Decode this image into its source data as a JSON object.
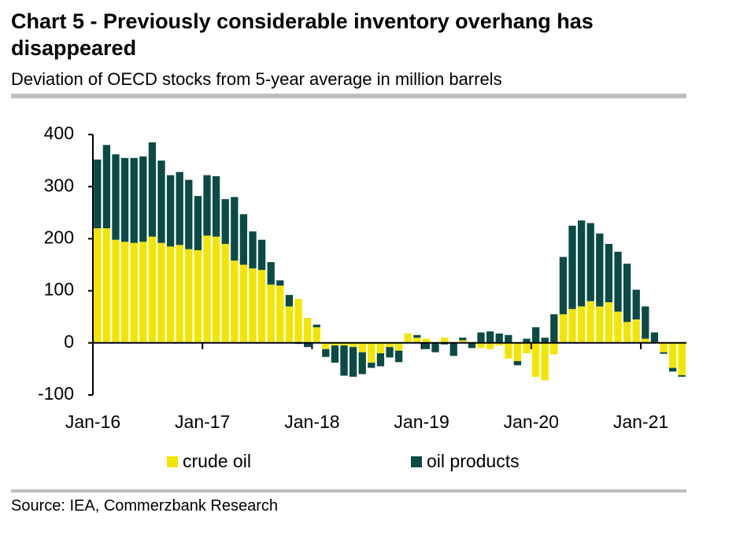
{
  "chart_data": {
    "type": "bar",
    "stacked": true,
    "title": "Chart 5 - Previously considerable inventory overhang has disappeared",
    "subtitle": "Deviation of OECD stocks from 5-year average in million barrels",
    "source": "Source: IEA, Commerzbank Research",
    "categories": [
      "Jan-16",
      null,
      null,
      null,
      null,
      null,
      null,
      null,
      null,
      null,
      null,
      null,
      "Jan-17",
      null,
      null,
      null,
      null,
      null,
      null,
      null,
      null,
      null,
      null,
      null,
      "Jan-18",
      null,
      null,
      null,
      null,
      null,
      null,
      null,
      null,
      null,
      null,
      null,
      "Jan-19",
      null,
      null,
      null,
      null,
      null,
      null,
      null,
      null,
      null,
      null,
      null,
      "Jan-20",
      null,
      null,
      null,
      null,
      null,
      null,
      null,
      null,
      null,
      null,
      null,
      "Jan-21",
      null,
      null,
      null,
      null
    ],
    "series": [
      {
        "name": "crude oil",
        "color": "#f2e600",
        "values": [
          220,
          220,
          198,
          194,
          192,
          194,
          204,
          192,
          185,
          188,
          180,
          178,
          206,
          204,
          190,
          158,
          150,
          143,
          140,
          112,
          110,
          70,
          84,
          48,
          30,
          -12,
          -5,
          -5,
          -8,
          -18,
          -38,
          -20,
          -8,
          -15,
          18,
          10,
          8,
          0,
          10,
          0,
          5,
          0,
          -10,
          -12,
          -5,
          -30,
          -35,
          -20,
          -65,
          -72,
          -22,
          55,
          65,
          70,
          80,
          70,
          78,
          60,
          40,
          45,
          8,
          0,
          -18,
          -48,
          -62
        ]
      },
      {
        "name": "oil products",
        "color": "#0b4a45",
        "values": [
          132,
          160,
          164,
          161,
          163,
          164,
          181,
          158,
          137,
          140,
          133,
          104,
          116,
          116,
          86,
          122,
          97,
          71,
          58,
          43,
          10,
          22,
          -2,
          -8,
          5,
          -15,
          -33,
          -58,
          -57,
          -42,
          -10,
          -25,
          -20,
          -22,
          0,
          5,
          -12,
          -18,
          -3,
          -25,
          5,
          -10,
          20,
          22,
          18,
          15,
          -8,
          8,
          30,
          10,
          55,
          110,
          160,
          165,
          150,
          140,
          112,
          115,
          112,
          57,
          62,
          20,
          -3,
          -7,
          -3
        ]
      }
    ],
    "ylim": [
      -100,
      400
    ],
    "yticks": [
      -100,
      0,
      100,
      200,
      300,
      400
    ],
    "legend": "bottom"
  }
}
